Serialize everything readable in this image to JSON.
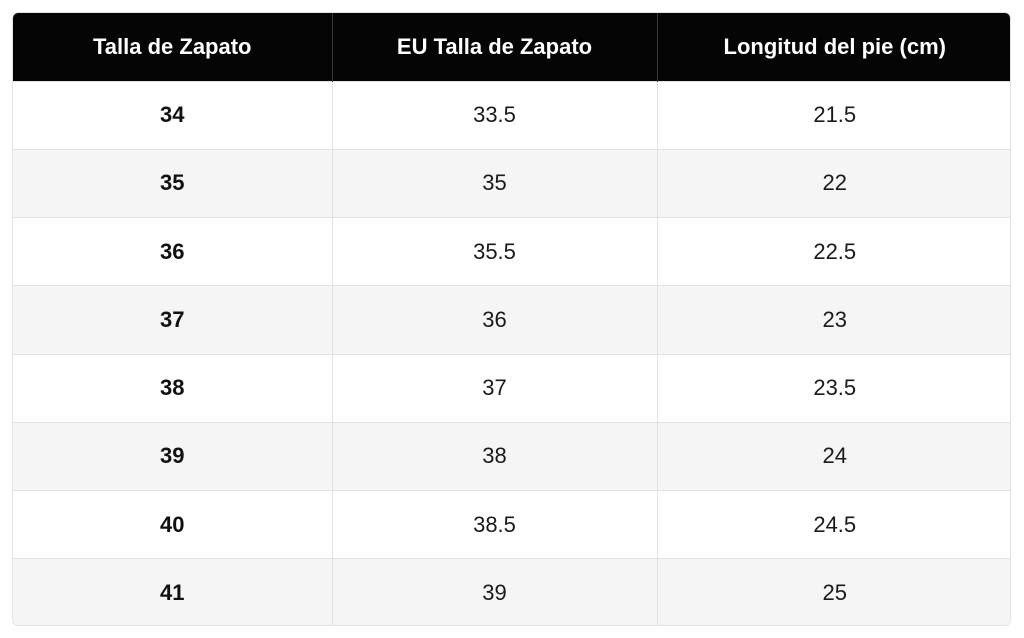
{
  "table": {
    "headers": [
      "Talla de Zapato",
      "EU Talla de Zapato",
      "Longitud del pie (cm)"
    ],
    "rows": [
      [
        "34",
        "33.5",
        "21.5"
      ],
      [
        "35",
        "35",
        "22"
      ],
      [
        "36",
        "35.5",
        "22.5"
      ],
      [
        "37",
        "36",
        "23"
      ],
      [
        "38",
        "37",
        "23.5"
      ],
      [
        "39",
        "38",
        "24"
      ],
      [
        "40",
        "38.5",
        "24.5"
      ],
      [
        "41",
        "39",
        "25"
      ]
    ]
  },
  "colors": {
    "header_bg": "#050505",
    "header_text": "#ffffff",
    "row_alt_bg": "#f5f5f5",
    "border": "#e2e2e2"
  }
}
